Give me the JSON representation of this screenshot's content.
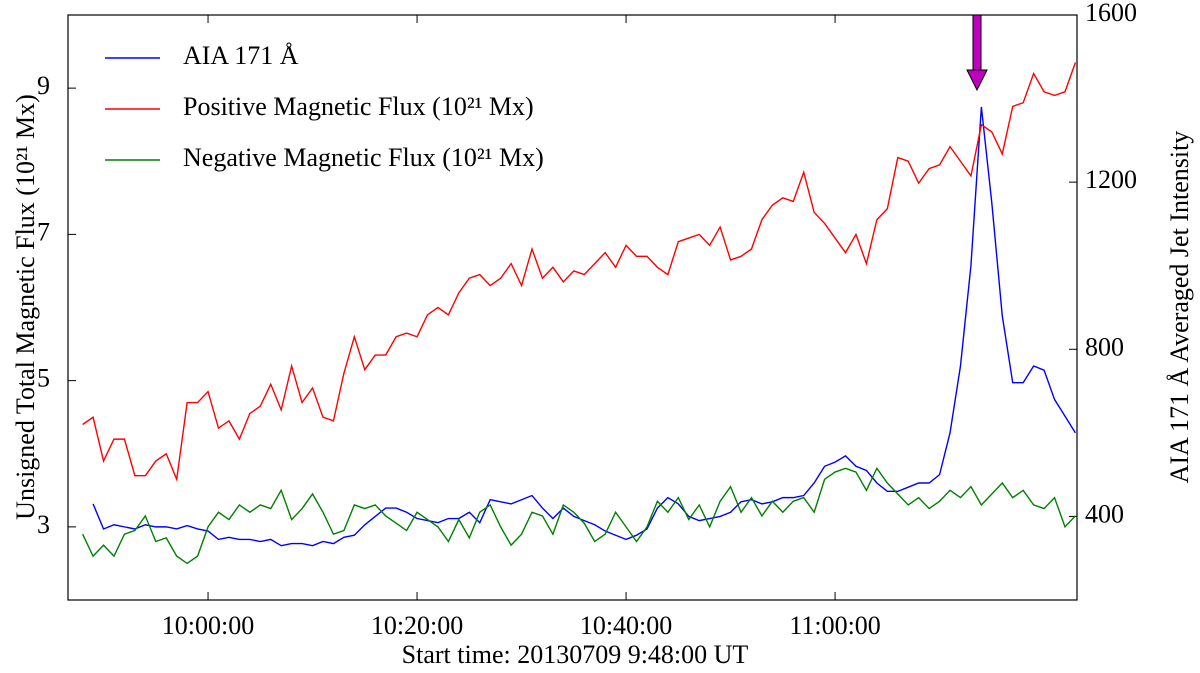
{
  "chart_data": {
    "type": "line",
    "x_label": "Start time: 20130709 9:48:00 UT",
    "y_label": "Unsigned Total Magnetic Flux (10²¹ Mx)",
    "y2_label": "AIA 171 Å Averaged Jet Intensity",
    "xlim": [
      -84,
      5709
    ],
    "ylim": [
      2,
      10
    ],
    "y2lim": [
      200,
      1600
    ],
    "xticks": [
      {
        "value": 720,
        "label": "10:00:00"
      },
      {
        "value": 1920,
        "label": "10:20:00"
      },
      {
        "value": 3120,
        "label": "10:40:00"
      },
      {
        "value": 4320,
        "label": "11:00:00"
      }
    ],
    "yticks": [
      3,
      5,
      7,
      9
    ],
    "y2ticks": [
      400,
      800,
      1200,
      1600
    ],
    "legend": "upper left",
    "x": [
      0,
      60,
      120,
      180,
      240,
      300,
      360,
      420,
      480,
      540,
      600,
      660,
      720,
      780,
      840,
      900,
      960,
      1020,
      1080,
      1140,
      1200,
      1260,
      1320,
      1380,
      1440,
      1500,
      1560,
      1620,
      1680,
      1740,
      1800,
      1860,
      1920,
      1980,
      2040,
      2100,
      2160,
      2220,
      2280,
      2340,
      2400,
      2460,
      2520,
      2580,
      2640,
      2700,
      2760,
      2820,
      2880,
      2940,
      3000,
      3060,
      3120,
      3180,
      3240,
      3300,
      3360,
      3420,
      3480,
      3540,
      3600,
      3660,
      3720,
      3780,
      3840,
      3900,
      3960,
      4020,
      4080,
      4140,
      4200,
      4260,
      4320,
      4380,
      4440,
      4500,
      4560,
      4620,
      4680,
      4740,
      4800,
      4860,
      4920,
      4980,
      5040,
      5100,
      5160,
      5220,
      5280,
      5340,
      5400,
      5460,
      5520,
      5580,
      5640,
      5700
    ],
    "series": [
      {
        "name": "AIA 171 Å",
        "color": "#0000ff",
        "axis": "y2",
        "values": [
          null,
          430,
          370,
          380,
          375,
          370,
          380,
          375,
          375,
          370,
          378,
          370,
          365,
          345,
          350,
          345,
          345,
          340,
          345,
          330,
          335,
          335,
          330,
          340,
          335,
          350,
          355,
          380,
          400,
          420,
          420,
          410,
          395,
          390,
          385,
          395,
          395,
          410,
          385,
          440,
          435,
          430,
          440,
          450,
          420,
          395,
          420,
          400,
          390,
          380,
          365,
          355,
          345,
          355,
          370,
          420,
          445,
          430,
          400,
          390,
          395,
          400,
          410,
          435,
          440,
          430,
          435,
          445,
          445,
          450,
          480,
          520,
          530,
          545,
          520,
          510,
          480,
          460,
          460,
          470,
          480,
          480,
          500,
          600,
          760,
          1000,
          1380,
          1150,
          880,
          720,
          720,
          760,
          750,
          680,
          640,
          600
        ]
      },
      {
        "name": "Positive Magnetic Flux (10²¹ Mx)",
        "color": "#ff0000",
        "values": [
          4.4,
          4.5,
          3.9,
          4.2,
          4.2,
          3.7,
          3.7,
          3.9,
          4.0,
          3.65,
          4.7,
          4.7,
          4.85,
          4.35,
          4.45,
          4.2,
          4.55,
          4.65,
          4.95,
          4.6,
          5.2,
          4.7,
          4.9,
          4.5,
          4.45,
          5.1,
          5.6,
          5.15,
          5.35,
          5.35,
          5.6,
          5.65,
          5.6,
          5.9,
          6.0,
          5.9,
          6.2,
          6.4,
          6.45,
          6.3,
          6.4,
          6.6,
          6.3,
          6.8,
          6.4,
          6.55,
          6.35,
          6.5,
          6.45,
          6.6,
          6.75,
          6.55,
          6.85,
          6.7,
          6.7,
          6.55,
          6.45,
          6.9,
          6.95,
          7.0,
          6.85,
          7.1,
          6.65,
          6.7,
          6.8,
          7.2,
          7.4,
          7.5,
          7.45,
          7.85,
          7.3,
          7.15,
          6.95,
          6.75,
          7.0,
          6.6,
          7.2,
          7.35,
          8.05,
          8.0,
          7.7,
          7.9,
          7.95,
          8.2,
          8.0,
          7.8,
          8.5,
          8.4,
          8.1,
          8.75,
          8.8,
          9.2,
          8.95,
          8.9,
          8.95,
          9.35
        ]
      },
      {
        "name": "Negative Magnetic Flux (10²¹ Mx)",
        "color": "#008000",
        "values": [
          2.9,
          2.6,
          2.75,
          2.6,
          2.9,
          2.95,
          3.15,
          2.8,
          2.85,
          2.6,
          2.5,
          2.6,
          3.0,
          3.2,
          3.1,
          3.3,
          3.2,
          3.3,
          3.25,
          3.5,
          3.1,
          3.25,
          3.45,
          3.2,
          2.9,
          2.95,
          3.3,
          3.25,
          3.3,
          3.15,
          3.05,
          2.95,
          3.2,
          3.1,
          3.0,
          2.8,
          3.1,
          2.85,
          3.2,
          3.3,
          3.0,
          2.75,
          2.9,
          3.2,
          3.15,
          2.9,
          3.3,
          3.2,
          3.05,
          2.8,
          2.9,
          3.2,
          3.0,
          2.8,
          3.0,
          3.35,
          3.2,
          3.4,
          3.1,
          3.3,
          3.0,
          3.35,
          3.55,
          3.2,
          3.4,
          3.15,
          3.35,
          3.2,
          3.35,
          3.4,
          3.2,
          3.65,
          3.75,
          3.8,
          3.75,
          3.5,
          3.8,
          3.6,
          3.45,
          3.3,
          3.4,
          3.25,
          3.35,
          3.5,
          3.4,
          3.55,
          3.3,
          3.45,
          3.6,
          3.4,
          3.5,
          3.3,
          3.25,
          3.4,
          3.0,
          3.15
        ]
      }
    ]
  }
}
